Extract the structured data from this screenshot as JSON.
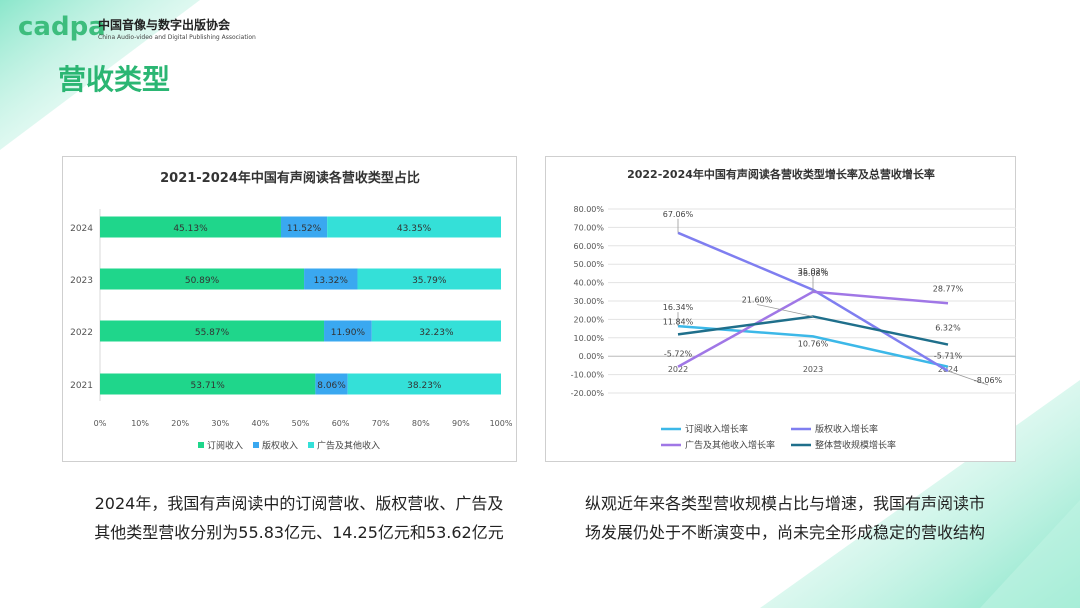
{
  "logo": {
    "word": "cadpa",
    "cn": "中国音像与数字出版协会",
    "en": "China Audio-video and Digital Publishing Association"
  },
  "page_title": "营收类型",
  "colors": {
    "brand_green": "#2bb673",
    "subscription": "#1fd68b",
    "copyright": "#3aa8f0",
    "advertising": "#34e0d8",
    "line_subscription": "#3cb8e8",
    "line_copyright": "#7f7ef0",
    "line_advertising": "#a077e6",
    "line_total": "#1f6f8b"
  },
  "chart_data": [
    {
      "type": "bar",
      "orientation": "horizontal",
      "stacked": "percent",
      "title": "2021-2024年中国有声阅读各营收类型占比",
      "categories": [
        "2024",
        "2023",
        "2022",
        "2021"
      ],
      "series": [
        {
          "name": "订阅收入",
          "values": [
            45.13,
            50.89,
            55.87,
            53.71
          ],
          "labels": [
            "45.13%",
            "50.89%",
            "55.87%",
            "53.71%"
          ]
        },
        {
          "name": "版权收入",
          "values": [
            11.52,
            13.32,
            11.9,
            8.06
          ],
          "labels": [
            "11.52%",
            "13.32%",
            "11.90%",
            "8.06%"
          ]
        },
        {
          "name": "广告及其他收入",
          "values": [
            43.35,
            35.79,
            32.23,
            38.23
          ],
          "labels": [
            "43.35%",
            "35.79%",
            "32.23%",
            "38.23%"
          ]
        }
      ],
      "xticks": [
        "0%",
        "10%",
        "20%",
        "30%",
        "40%",
        "50%",
        "60%",
        "70%",
        "80%",
        "90%",
        "100%"
      ],
      "xlim": [
        0,
        100
      ],
      "legend": "bottom"
    },
    {
      "type": "line",
      "title": "2022-2024年中国有声阅读各营收类型增长率及总营收增长率",
      "x": [
        "2022",
        "2023",
        "2024"
      ],
      "series": [
        {
          "name": "订阅收入增长率",
          "values": [
            16.34,
            10.76,
            -5.71
          ],
          "labels": [
            "16.34%",
            "10.76%",
            "-5.71%"
          ]
        },
        {
          "name": "版权收入增长率",
          "values": [
            67.06,
            36.08,
            -8.06
          ],
          "labels": [
            "67.06%",
            "36.08%",
            "-8.06%"
          ]
        },
        {
          "name": "广告及其他收入增长率",
          "values": [
            -5.72,
            35.02,
            28.77
          ],
          "labels": [
            "-5.72%",
            "35.02%",
            "28.77%"
          ]
        },
        {
          "name": "整体营收规模增长率",
          "values": [
            11.84,
            21.6,
            6.32
          ],
          "labels": [
            "11.84%",
            "21.60%",
            "6.32%"
          ]
        }
      ],
      "yticks": [
        "80.00%",
        "70.00%",
        "60.00%",
        "50.00%",
        "40.00%",
        "30.00%",
        "20.00%",
        "10.00%",
        "0.00%",
        "-10.00%",
        "-20.00%"
      ],
      "ylim": [
        -20,
        80
      ],
      "legend": "bottom"
    }
  ],
  "captions": {
    "left": [
      "2024年，我国有声阅读中的订阅营收、版权营收、广告及",
      "其他类型营收分别为55.83亿元、14.25亿元和53.62亿元"
    ],
    "right": [
      "纵观近年来各类型营收规模占比与增速，我国有声阅读市",
      "场发展仍处于不断演变中，尚未完全形成稳定的营收结构"
    ]
  }
}
